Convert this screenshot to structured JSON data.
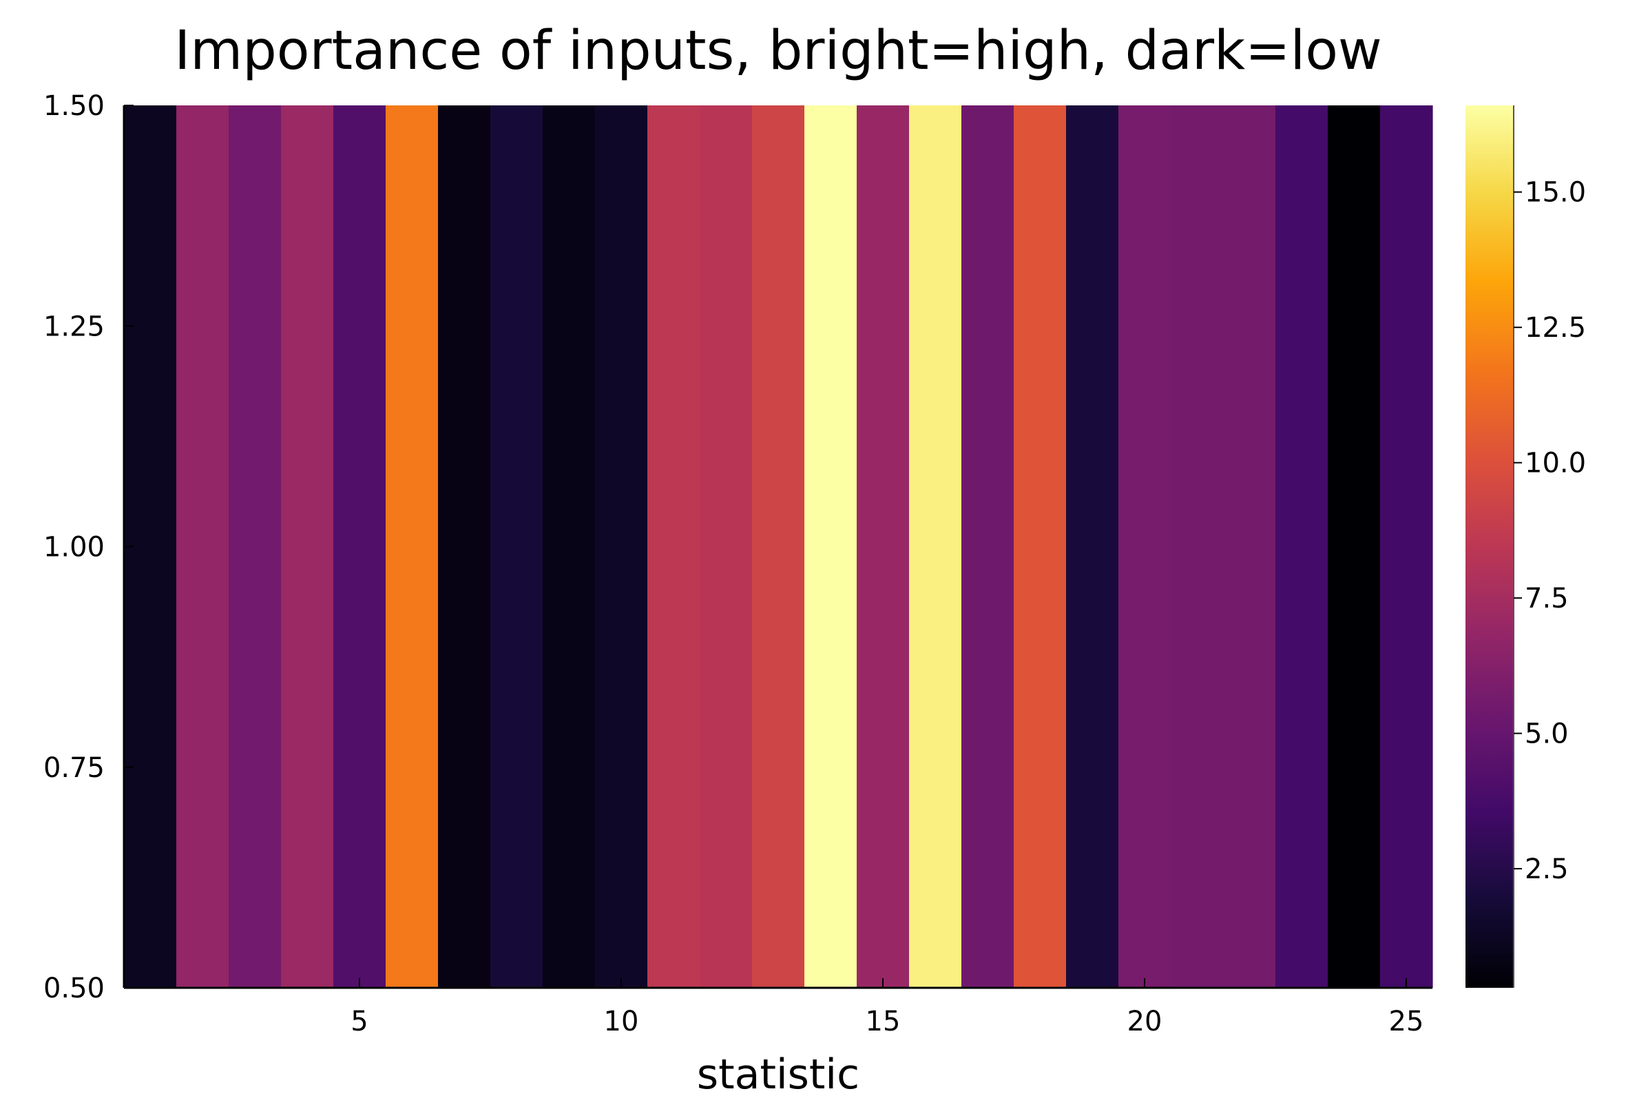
{
  "chart_data": {
    "type": "heatmap",
    "title": "Importance of inputs, bright=high, dark=low",
    "xlabel": "statistic",
    "ylabel": "",
    "x": [
      1,
      2,
      3,
      4,
      5,
      6,
      7,
      8,
      9,
      10,
      11,
      12,
      13,
      14,
      15,
      16,
      17,
      18,
      19,
      20,
      21,
      22,
      23,
      24,
      25
    ],
    "values": [
      1.2,
      6.8,
      5.5,
      7.1,
      4.2,
      11.8,
      0.8,
      1.9,
      0.9,
      1.4,
      8.5,
      8.3,
      9.3,
      16.6,
      7.0,
      16.0,
      5.4,
      10.2,
      2.0,
      5.7,
      5.6,
      5.6,
      3.7,
      0.3,
      3.6
    ],
    "xlim": [
      0.5,
      25.5
    ],
    "ylim": [
      0.5,
      1.5
    ],
    "xticks": [
      5,
      10,
      15,
      20,
      25
    ],
    "xtick_labels": [
      "5",
      "10",
      "15",
      "20",
      "25"
    ],
    "yticks": [
      0.5,
      0.75,
      1.0,
      1.25,
      1.5
    ],
    "ytick_labels": [
      "0.50",
      "0.75",
      "1.00",
      "1.25",
      "1.50"
    ],
    "colorbar": {
      "colormap": "inferno",
      "range": [
        0.3,
        16.6
      ],
      "ticks": [
        2.5,
        5.0,
        7.5,
        10.0,
        12.5,
        15.0
      ],
      "tick_labels": [
        "2.5",
        "5.0",
        "7.5",
        "10.0",
        "12.5",
        "15.0"
      ]
    },
    "grid": false,
    "legend": "none"
  }
}
